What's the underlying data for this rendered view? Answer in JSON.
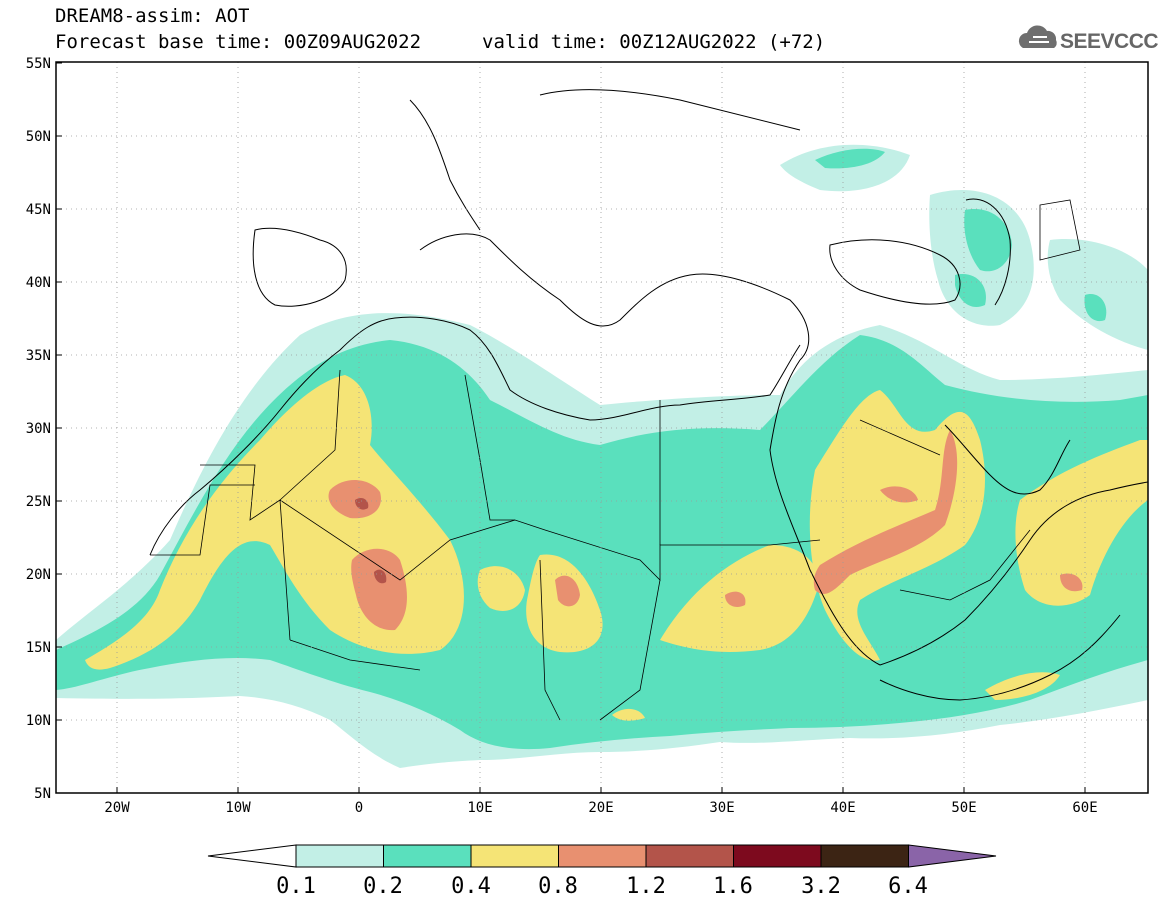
{
  "title": {
    "line1": "DREAM8-assim: AOT",
    "line2": "Forecast base time: 00Z09AUG2022",
    "valid": "valid time: 00Z12AUG2022 (+72)"
  },
  "logo": {
    "text": "SEEVCCC",
    "icon": "cloud-icon"
  },
  "map": {
    "lon_range": [
      -25,
      65
    ],
    "lat_range": [
      5,
      55
    ],
    "lat_ticks": [
      "5N",
      "10N",
      "15N",
      "20N",
      "25N",
      "30N",
      "35N",
      "40N",
      "45N",
      "50N",
      "55N"
    ],
    "lon_ticks": [
      "20W",
      "10W",
      "0",
      "10E",
      "20E",
      "30E",
      "40E",
      "50E",
      "60E"
    ],
    "variable": "AOT (aerosol optical thickness)"
  },
  "colorbar": {
    "labels": [
      "0.1",
      "0.2",
      "0.4",
      "0.8",
      "1.2",
      "1.6",
      "3.2",
      "6.4"
    ],
    "colors": [
      "#ffffff",
      "#c2efe6",
      "#5ae0bd",
      "#f5e476",
      "#e89070",
      "#b3544a",
      "#7d0a1e",
      "#3c2414",
      "#8a64a8"
    ]
  }
}
